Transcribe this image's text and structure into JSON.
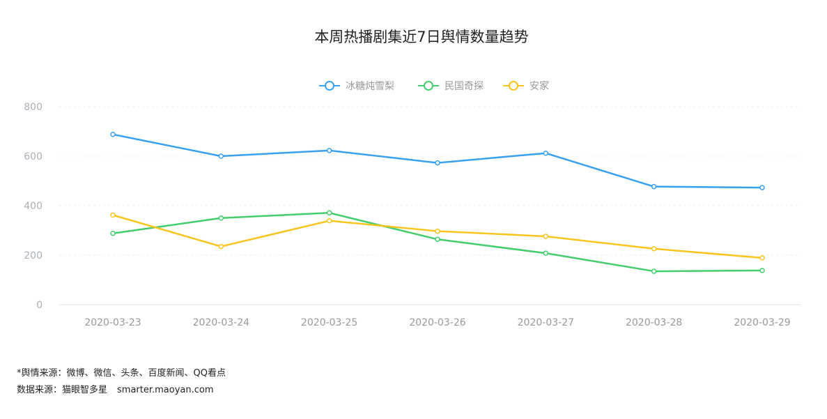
{
  "chart_data": {
    "type": "line",
    "title": "本周热播剧集近7日舆情数量趋势",
    "categories": [
      "2020-03-23",
      "2020-03-24",
      "2020-03-25",
      "2020-03-26",
      "2020-03-27",
      "2020-03-28",
      "2020-03-29"
    ],
    "ylim": [
      0,
      800
    ],
    "yticks": [
      0,
      200,
      400,
      600,
      800
    ],
    "grid": true,
    "legend_position": "top-center",
    "series": [
      {
        "name": "冰糖炖雪梨",
        "color": "#3aa0f0",
        "values": [
          688,
          600,
          623,
          573,
          612,
          477,
          473
        ]
      },
      {
        "name": "民国奇探",
        "color": "#45cc6e",
        "values": [
          288,
          350,
          371,
          264,
          208,
          135,
          138
        ]
      },
      {
        "name": "安家",
        "color": "#f7c51e",
        "values": [
          362,
          235,
          339,
          297,
          276,
          226,
          189
        ]
      }
    ]
  },
  "footer": {
    "note": "*舆情来源：微博、微信、头条、百度新闻、QQ看点",
    "source": "数据来源：猫眼智多星",
    "site": "smarter.maoyan.com"
  }
}
